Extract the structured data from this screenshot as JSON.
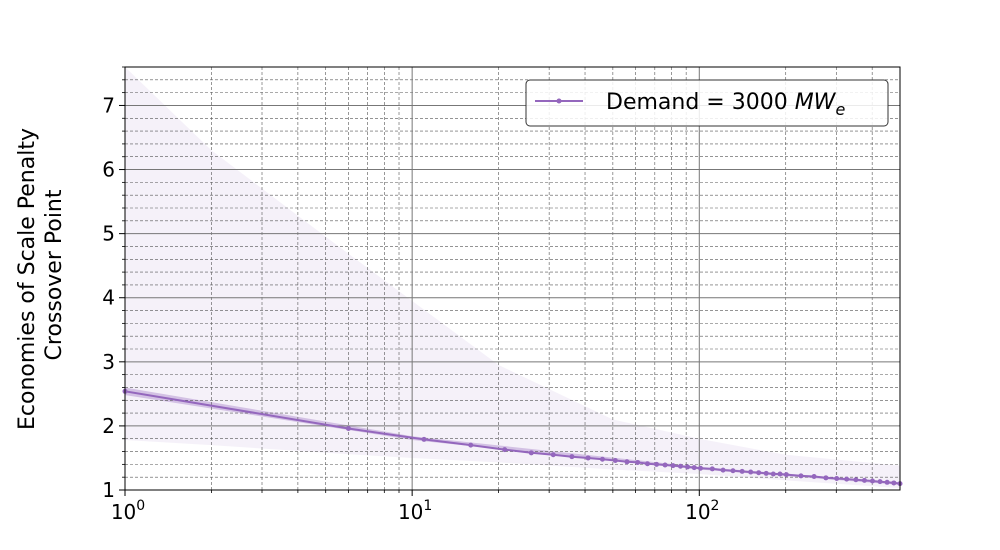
{
  "chart_data": {
    "type": "line",
    "title": "",
    "xlabel": "",
    "ylabel_line1": "Economies of Scale Penalty",
    "ylabel_line2": "Crossover Point",
    "x_scale": "log",
    "xlim": [
      1,
      500
    ],
    "ylim": [
      1,
      7.6
    ],
    "x_ticks": [
      {
        "value": 1,
        "base": "10",
        "exp": "0"
      },
      {
        "value": 10,
        "base": "10",
        "exp": "1"
      },
      {
        "value": 100,
        "base": "10",
        "exp": "2"
      }
    ],
    "y_ticks": [
      1,
      2,
      3,
      4,
      5,
      6,
      7
    ],
    "grid": true,
    "legend_position": "top-right",
    "series": [
      {
        "name_prefix": "Demand = 3000 ",
        "name_math": "MW",
        "name_sub": "e",
        "color": "#9467bd",
        "band_color": "#9467bd",
        "x": [
          1,
          6,
          11,
          16,
          21,
          26,
          31,
          36,
          41,
          46,
          51,
          56,
          61,
          66,
          71,
          76,
          81,
          86,
          91,
          96,
          101,
          111,
          121,
          131,
          141,
          151,
          161,
          171,
          181,
          191,
          201,
          226,
          251,
          276,
          301,
          326,
          351,
          376,
          401,
          426,
          451,
          476,
          500
        ],
        "y": [
          2.54,
          1.96,
          1.79,
          1.7,
          1.63,
          1.58,
          1.55,
          1.52,
          1.5,
          1.48,
          1.46,
          1.44,
          1.43,
          1.41,
          1.4,
          1.39,
          1.38,
          1.37,
          1.36,
          1.35,
          1.34,
          1.33,
          1.31,
          1.3,
          1.29,
          1.28,
          1.27,
          1.26,
          1.25,
          1.25,
          1.24,
          1.22,
          1.21,
          1.19,
          1.18,
          1.17,
          1.16,
          1.15,
          1.14,
          1.13,
          1.12,
          1.11,
          1.1
        ],
        "inner_band": {
          "x": [
            1,
            10,
            100,
            500
          ],
          "lower": [
            2.48,
            1.78,
            1.32,
            1.08
          ],
          "upper": [
            2.6,
            1.84,
            1.36,
            1.12
          ]
        },
        "outer_band": {
          "x": [
            1,
            2,
            5,
            10,
            20,
            50,
            100,
            200,
            500
          ],
          "lower": [
            1.78,
            1.7,
            1.58,
            1.5,
            1.43,
            1.32,
            1.25,
            1.15,
            1.03
          ],
          "upper": [
            7.6,
            6.3,
            4.95,
            3.95,
            2.95,
            2.1,
            1.8,
            1.55,
            1.38
          ]
        }
      }
    ]
  }
}
